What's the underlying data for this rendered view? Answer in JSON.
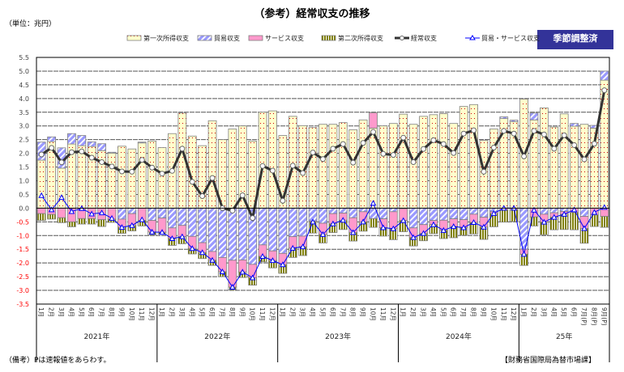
{
  "title": "（参考）経常収支の推移",
  "unit": "（単位：兆円）",
  "badge": "季節調整済",
  "note": "（備考）Pは速報値をあらわす。",
  "source": "【財務省国際局為替市場課】",
  "colors": {
    "primary_income": "#FFFFCC",
    "primary_income_dots": "#CC0000",
    "trade": "#9999FF",
    "services": "#FF99CC",
    "secondary_income": "#808000",
    "current_account": "#333333",
    "trade_services": "#0000FF",
    "badge": "#333399",
    "negative_tick": "#FF0000"
  },
  "chart_data": {
    "type": "bar",
    "stacked": true,
    "title": "（参考）経常収支の推移",
    "ylabel": "（単位：兆円）",
    "ylim": [
      -3.5,
      5.5
    ],
    "yticks": [
      "5.5",
      "5.0",
      "4.5",
      "4.0",
      "3.5",
      "3.0",
      "2.5",
      "2.0",
      "1.5",
      "1.0",
      "0.5",
      "0.0",
      "-0.5",
      "-1.0",
      "-1.5",
      "-2.0",
      "-2.5",
      "-3.0",
      "-3.5"
    ],
    "grid": true,
    "legend": "top",
    "years": [
      "2021年",
      "2022年",
      "2023年",
      "2024年",
      "25年"
    ],
    "year_months": [
      12,
      12,
      12,
      12,
      9
    ],
    "categories": [
      "1月",
      "2月",
      "3月",
      "4月",
      "5月",
      "6月",
      "7月",
      "8月",
      "9月",
      "10月",
      "11月",
      "12月",
      "1月",
      "2月",
      "3月",
      "4月",
      "5月",
      "6月",
      "7月",
      "8月",
      "9月",
      "10月",
      "11月",
      "12月",
      "1月",
      "2月",
      "3月",
      "4月",
      "5月",
      "6月",
      "7月",
      "8月",
      "9月",
      "10月",
      "11月",
      "12月",
      "1月",
      "2月",
      "3月",
      "4月",
      "5月",
      "6月",
      "7月",
      "8月",
      "9月",
      "10月",
      "11月",
      "12月",
      "1月",
      "2月",
      "3月",
      "4月",
      "5月",
      "6月",
      "7月(P)",
      "8月(P)",
      "9月(P)"
    ],
    "series": [
      {
        "name": "第一次所得収支",
        "kind": "bar",
        "values": [
          1.75,
          2.43,
          1.46,
          2.34,
          2.28,
          2.25,
          2.1,
          2.01,
          2.26,
          2.16,
          2.38,
          2.45,
          2.21,
          2.72,
          3.47,
          2.63,
          2.28,
          3.19,
          2.5,
          2.89,
          3.0,
          2.45,
          3.5,
          3.55,
          2.65,
          3.35,
          3.01,
          2.94,
          3.06,
          3.06,
          3.12,
          2.86,
          3.22,
          2.92,
          3.0,
          3.09,
          3.43,
          3.06,
          3.35,
          3.41,
          3.45,
          3.09,
          3.71,
          3.78,
          2.47,
          2.89,
          3.27,
          3.16,
          3.98,
          3.22,
          3.66,
          2.96,
          3.44,
          2.99,
          3.06,
          2.92,
          4.67
        ]
      },
      {
        "name": "貿易収支",
        "kind": "bar",
        "values": [
          0.66,
          0.17,
          0.74,
          0.38,
          0.37,
          0.17,
          0.25,
          0.03,
          -0.4,
          -0.2,
          0.03,
          -0.45,
          -0.36,
          -0.72,
          -0.63,
          -1.03,
          -1.26,
          -1.58,
          -1.8,
          -1.9,
          -1.89,
          -2.05,
          -1.34,
          -1.56,
          -1.65,
          -1.04,
          -1.02,
          -0.47,
          -0.55,
          -0.2,
          -0.18,
          -0.35,
          -0.13,
          -0.38,
          -0.39,
          -0.13,
          -0.02,
          -0.72,
          -0.6,
          -0.45,
          -0.44,
          -0.39,
          -0.42,
          -0.22,
          -0.33,
          -0.13,
          0.06,
          0.05,
          -1.5,
          0.25,
          -0.22,
          -0.17,
          -0.12,
          0.1,
          -0.3,
          0.1,
          0.33
        ]
      },
      {
        "name": "サービス収支",
        "kind": "bar",
        "values": [
          -0.2,
          -0.23,
          -0.35,
          -0.5,
          -0.38,
          -0.38,
          -0.42,
          -0.4,
          -0.3,
          -0.43,
          -0.45,
          -0.42,
          -0.52,
          -0.39,
          -0.41,
          -0.44,
          -0.36,
          -0.32,
          -0.52,
          -0.98,
          -0.44,
          -0.49,
          -0.42,
          -0.35,
          -0.41,
          -0.42,
          -0.39,
          -0.03,
          -0.41,
          -0.37,
          -0.26,
          -0.54,
          -0.37,
          0.56,
          -0.32,
          -0.62,
          -0.43,
          -0.35,
          -0.32,
          -0.15,
          -0.37,
          -0.28,
          -0.29,
          -0.3,
          -0.36,
          -0.06,
          -0.06,
          -0.05,
          -0.18,
          -0.32,
          -0.29,
          -0.16,
          -0.1,
          -0.16,
          -0.44,
          -0.25,
          -0.3
        ]
      },
      {
        "name": "第二次所得収支",
        "kind": "bar",
        "values": [
          -0.25,
          -0.17,
          -0.18,
          -0.18,
          -0.2,
          -0.2,
          -0.25,
          -0.12,
          -0.22,
          -0.2,
          -0.2,
          -0.1,
          -0.07,
          -0.25,
          -0.26,
          -0.2,
          -0.22,
          -0.19,
          -0.18,
          -0.1,
          -0.2,
          -0.27,
          -0.2,
          -0.27,
          -0.32,
          -0.34,
          -0.32,
          -0.41,
          -0.31,
          -0.32,
          -0.34,
          -0.31,
          -0.34,
          -0.32,
          -0.31,
          -0.4,
          -0.41,
          -0.31,
          -0.27,
          -0.33,
          -0.3,
          -0.41,
          -0.28,
          -0.42,
          -0.45,
          -0.49,
          -0.45,
          -0.44,
          -0.41,
          -0.33,
          -0.46,
          -0.46,
          -0.56,
          -0.63,
          -0.54,
          -0.42,
          -0.4
        ]
      },
      {
        "name": "経常収支",
        "kind": "line",
        "values": [
          1.96,
          2.2,
          1.67,
          2.04,
          2.07,
          1.84,
          1.68,
          1.52,
          1.34,
          1.33,
          1.76,
          1.48,
          1.26,
          1.36,
          2.17,
          0.96,
          0.44,
          1.1,
          0.0,
          -0.09,
          0.47,
          -0.36,
          1.54,
          1.37,
          0.27,
          1.55,
          1.28,
          2.03,
          1.79,
          2.17,
          2.34,
          1.66,
          2.38,
          2.78,
          1.98,
          1.94,
          2.57,
          1.68,
          2.16,
          2.48,
          2.34,
          2.01,
          2.72,
          2.84,
          1.33,
          2.21,
          2.82,
          2.72,
          1.89,
          2.82,
          2.69,
          2.17,
          2.66,
          2.3,
          1.78,
          2.35,
          4.3
        ]
      },
      {
        "name": "貿易・サービス収支",
        "kind": "line",
        "values": [
          0.46,
          -0.06,
          0.39,
          -0.12,
          -0.01,
          -0.21,
          -0.17,
          -0.37,
          -0.7,
          -0.63,
          -0.42,
          -0.87,
          -0.88,
          -1.11,
          -1.04,
          -1.47,
          -1.62,
          -1.9,
          -2.32,
          -2.88,
          -2.33,
          -2.54,
          -1.76,
          -1.91,
          -2.06,
          -1.46,
          -1.41,
          -0.5,
          -0.96,
          -0.57,
          -0.44,
          -0.89,
          -0.5,
          0.18,
          -0.71,
          -0.75,
          -0.45,
          -1.07,
          -0.92,
          -0.6,
          -0.81,
          -0.67,
          -0.71,
          -0.52,
          -0.69,
          -0.19,
          0.0,
          0.0,
          -1.68,
          -0.07,
          -0.51,
          -0.33,
          -0.22,
          -0.06,
          -0.74,
          -0.15,
          0.03
        ]
      }
    ]
  }
}
